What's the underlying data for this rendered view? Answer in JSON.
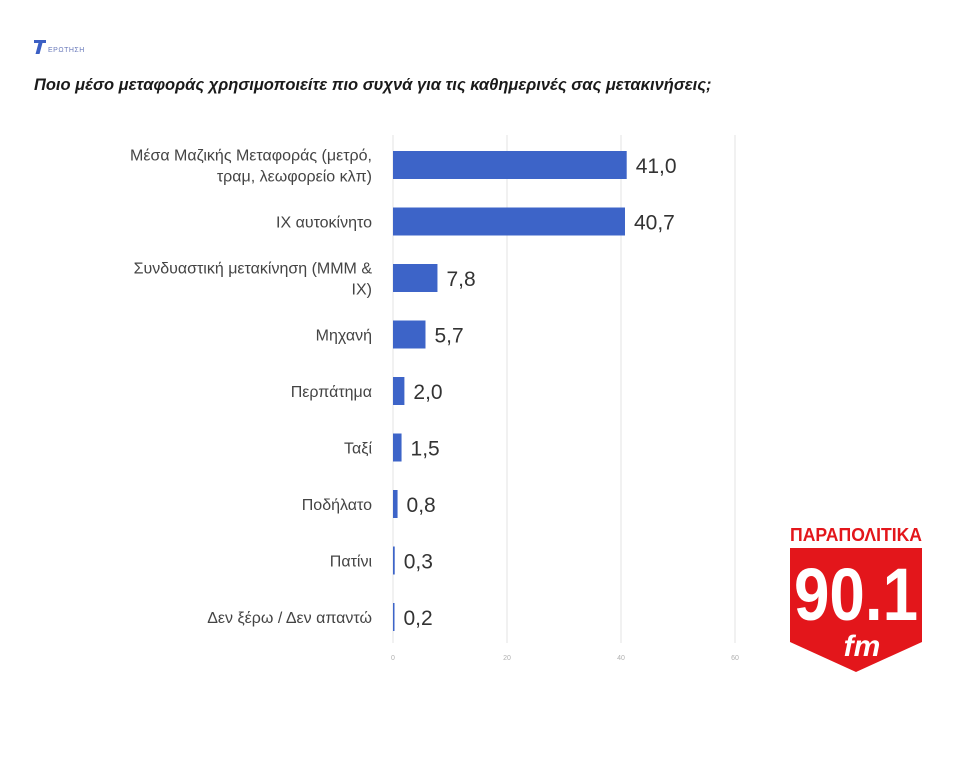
{
  "header": {
    "badge_text": "ΕΡΩΤΗΣΗ",
    "question": "Ποιο μέσο μεταφοράς χρησιμοποιείτε πιο συχνά για τις καθημερινές σας μετακινήσεις;"
  },
  "chart_data": {
    "type": "bar",
    "orientation": "horizontal",
    "title": "",
    "xlabel": "",
    "ylabel": "",
    "categories": [
      [
        "Μέσα Μαζικής Μεταφοράς (μετρό,",
        "τραμ, λεωφορείο κλπ)"
      ],
      [
        "ΙΧ αυτοκίνητο"
      ],
      [
        "Συνδυαστική μετακίνηση (ΜΜΜ &",
        "ΙΧ)"
      ],
      [
        "Μηχανή"
      ],
      [
        "Περπάτημα"
      ],
      [
        "Ταξί"
      ],
      [
        "Ποδήλατο"
      ],
      [
        "Πατίνι"
      ],
      [
        "Δεν ξέρω / Δεν απαντώ"
      ]
    ],
    "values": [
      41.0,
      40.7,
      7.8,
      5.7,
      2.0,
      1.5,
      0.8,
      0.3,
      0.2
    ],
    "value_labels": [
      "41,0",
      "40,7",
      "7,8",
      "5,7",
      "2,0",
      "1,5",
      "0,8",
      "0,3",
      "0,2"
    ],
    "xlim": [
      0,
      60
    ],
    "xticks": [
      0,
      20,
      40,
      60
    ],
    "xtick_labels": [
      "0",
      "20",
      "40",
      "60"
    ],
    "grid": true,
    "bar_color": "#3d64c8"
  },
  "brand": {
    "line1": "ΠΑΡΑΠΟΛΙΤΙΚΑ",
    "line2": "90.1",
    "line3": "fm",
    "red": "#e3161b"
  }
}
